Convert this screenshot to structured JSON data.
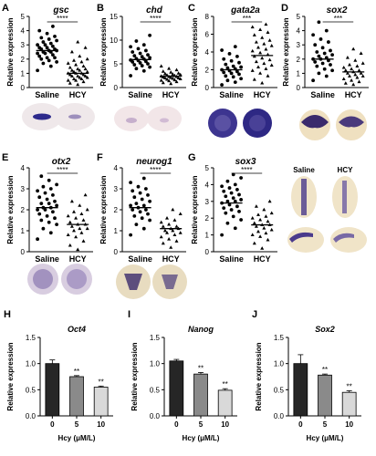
{
  "chart_data": [
    {
      "panel": "A",
      "type": "scatter",
      "title": "gsc",
      "ylabel": "Relative expression",
      "categories": [
        "Saline",
        "HCY"
      ],
      "ylim": [
        0,
        5
      ],
      "yticks": [
        0,
        1,
        2,
        3,
        4,
        5
      ],
      "significance": "****",
      "series": [
        {
          "name": "Saline",
          "mean": 2.6,
          "values": [
            1.2,
            1.5,
            1.7,
            1.8,
            1.9,
            2.0,
            2.1,
            2.1,
            2.2,
            2.3,
            2.4,
            2.4,
            2.5,
            2.5,
            2.6,
            2.6,
            2.7,
            2.7,
            2.8,
            2.8,
            2.9,
            3.0,
            3.0,
            3.1,
            3.2,
            3.3,
            3.4,
            3.5,
            3.6,
            3.8,
            4.0,
            4.3
          ]
        },
        {
          "name": "HCY",
          "mean": 1.0,
          "values": [
            0.2,
            0.3,
            0.4,
            0.5,
            0.5,
            0.6,
            0.6,
            0.7,
            0.7,
            0.8,
            0.8,
            0.8,
            0.9,
            0.9,
            1.0,
            1.0,
            1.0,
            1.1,
            1.1,
            1.2,
            1.2,
            1.3,
            1.3,
            1.4,
            1.5,
            1.6,
            1.7,
            1.8,
            1.9,
            2.0,
            2.2,
            2.5,
            2.8,
            3.2
          ]
        }
      ]
    },
    {
      "panel": "B",
      "type": "scatter",
      "title": "chd",
      "ylabel": "Relative expression",
      "categories": [
        "Saline",
        "HCY"
      ],
      "ylim": [
        0,
        15
      ],
      "yticks": [
        0,
        5,
        10,
        15
      ],
      "significance": "****",
      "series": [
        {
          "name": "Saline",
          "mean": 5.9,
          "values": [
            2.5,
            3.5,
            4.0,
            4.3,
            4.6,
            4.8,
            5.0,
            5.2,
            5.4,
            5.5,
            5.7,
            5.8,
            6.0,
            6.1,
            6.3,
            6.5,
            6.7,
            6.9,
            7.2,
            7.5,
            7.8,
            8.2,
            8.6,
            9.0,
            9.8,
            11.0
          ]
        },
        {
          "name": "HCY",
          "mean": 2.4,
          "values": [
            0.8,
            1.0,
            1.2,
            1.4,
            1.5,
            1.6,
            1.7,
            1.8,
            1.9,
            2.0,
            2.0,
            2.1,
            2.2,
            2.3,
            2.3,
            2.4,
            2.5,
            2.6,
            2.7,
            2.8,
            2.9,
            3.0,
            3.2,
            3.4,
            3.7,
            4.0,
            4.5
          ]
        }
      ]
    },
    {
      "panel": "C",
      "type": "scatter",
      "title": "gata2a",
      "ylabel": "Relative expression",
      "categories": [
        "Saline",
        "HCY"
      ],
      "ylim": [
        0,
        8
      ],
      "yticks": [
        0,
        2,
        4,
        6,
        8
      ],
      "significance": "***",
      "series": [
        {
          "name": "Saline",
          "mean": 2.0,
          "values": [
            0.3,
            0.6,
            0.8,
            1.0,
            1.2,
            1.3,
            1.5,
            1.6,
            1.7,
            1.8,
            1.9,
            2.0,
            2.1,
            2.2,
            2.3,
            2.4,
            2.6,
            2.8,
            3.0,
            3.2,
            3.5,
            3.8,
            4.2,
            4.6
          ]
        },
        {
          "name": "HCY",
          "mean": 3.6,
          "values": [
            0.5,
            0.9,
            1.3,
            1.6,
            1.9,
            2.1,
            2.3,
            2.5,
            2.7,
            2.9,
            3.1,
            3.3,
            3.5,
            3.7,
            3.9,
            4.1,
            4.3,
            4.5,
            4.7,
            4.9,
            5.1,
            5.3,
            5.6,
            5.9,
            6.2,
            6.5,
            6.8,
            7.1
          ]
        }
      ]
    },
    {
      "panel": "D",
      "type": "scatter",
      "title": "sox2",
      "ylabel": "Relative expression",
      "categories": [
        "Saline",
        "HCY"
      ],
      "ylim": [
        0,
        5
      ],
      "yticks": [
        0,
        1,
        2,
        3,
        4,
        5
      ],
      "significance": "***",
      "series": [
        {
          "name": "Saline",
          "mean": 2.0,
          "values": [
            0.5,
            0.8,
            1.0,
            1.2,
            1.3,
            1.5,
            1.6,
            1.7,
            1.8,
            1.9,
            2.0,
            2.0,
            2.1,
            2.2,
            2.3,
            2.4,
            2.5,
            2.6,
            2.8,
            3.0,
            3.2,
            3.4,
            3.7,
            4.0,
            4.6
          ]
        },
        {
          "name": "HCY",
          "mean": 1.1,
          "values": [
            0.2,
            0.3,
            0.4,
            0.5,
            0.6,
            0.7,
            0.8,
            0.8,
            0.9,
            1.0,
            1.0,
            1.1,
            1.2,
            1.2,
            1.3,
            1.4,
            1.5,
            1.6,
            1.7,
            1.9,
            2.1,
            2.4,
            2.7
          ]
        }
      ]
    },
    {
      "panel": "E",
      "type": "scatter",
      "title": "otx2",
      "ylabel": "Relative expression",
      "categories": [
        "Saline",
        "HCY"
      ],
      "ylim": [
        0,
        4
      ],
      "yticks": [
        0,
        1,
        2,
        3,
        4
      ],
      "significance": "****",
      "series": [
        {
          "name": "Saline",
          "mean": 2.1,
          "values": [
            0.6,
            0.9,
            1.1,
            1.3,
            1.4,
            1.5,
            1.6,
            1.7,
            1.8,
            1.9,
            2.0,
            2.0,
            2.1,
            2.1,
            2.2,
            2.3,
            2.3,
            2.4,
            2.5,
            2.6,
            2.7,
            2.8,
            2.9,
            3.0,
            3.1,
            3.2,
            3.4,
            3.6
          ]
        },
        {
          "name": "HCY",
          "mean": 1.3,
          "values": [
            0.1,
            0.3,
            0.5,
            0.7,
            0.8,
            0.9,
            1.0,
            1.1,
            1.1,
            1.2,
            1.3,
            1.3,
            1.4,
            1.5,
            1.6,
            1.7,
            1.8,
            1.9,
            2.0,
            2.2,
            2.4,
            2.7
          ]
        }
      ]
    },
    {
      "panel": "F",
      "type": "scatter",
      "title": "neurog1",
      "ylabel": "Relative expression",
      "categories": [
        "Saline",
        "HCY"
      ],
      "ylim": [
        0,
        4
      ],
      "yticks": [
        0,
        1,
        2,
        3,
        4
      ],
      "significance": "****",
      "series": [
        {
          "name": "Saline",
          "mean": 2.1,
          "values": [
            0.8,
            1.1,
            1.3,
            1.5,
            1.6,
            1.7,
            1.8,
            1.9,
            2.0,
            2.0,
            2.1,
            2.2,
            2.2,
            2.3,
            2.4,
            2.5,
            2.6,
            2.7,
            2.8,
            2.9,
            3.0,
            3.1,
            3.3,
            3.5
          ]
        },
        {
          "name": "HCY",
          "mean": 1.1,
          "values": [
            0.2,
            0.4,
            0.5,
            0.6,
            0.7,
            0.8,
            0.9,
            0.9,
            1.0,
            1.0,
            1.1,
            1.1,
            1.2,
            1.2,
            1.3,
            1.4,
            1.5,
            1.6,
            1.8,
            2.0
          ]
        }
      ]
    },
    {
      "panel": "G",
      "type": "scatter",
      "title": "sox3",
      "ylabel": "Relative expression",
      "categories": [
        "Saline",
        "HCY"
      ],
      "ylim": [
        0,
        5
      ],
      "yticks": [
        0,
        1,
        2,
        3,
        4,
        5
      ],
      "significance": "****",
      "series": [
        {
          "name": "Saline",
          "mean": 2.9,
          "values": [
            1.0,
            1.4,
            1.7,
            1.9,
            2.1,
            2.3,
            2.4,
            2.5,
            2.6,
            2.7,
            2.8,
            2.9,
            3.0,
            3.0,
            3.1,
            3.2,
            3.3,
            3.4,
            3.5,
            3.6,
            3.7,
            3.8,
            3.9,
            4.0,
            4.2,
            4.4,
            4.6
          ]
        },
        {
          "name": "HCY",
          "mean": 1.6,
          "values": [
            0.2,
            0.5,
            0.7,
            0.9,
            1.0,
            1.1,
            1.2,
            1.3,
            1.4,
            1.5,
            1.6,
            1.6,
            1.7,
            1.8,
            1.9,
            2.0,
            2.1,
            2.2,
            2.3,
            2.5,
            2.7,
            3.0
          ]
        }
      ]
    },
    {
      "panel": "H",
      "type": "bar",
      "title": "Oct4",
      "ylabel": "Relative expression",
      "xlabel": "Hcy (μM/L)",
      "categories": [
        "0",
        "5",
        "10"
      ],
      "values": [
        1.0,
        0.75,
        0.55
      ],
      "errors": [
        0.07,
        0.02,
        0.02
      ],
      "annotations": [
        "",
        "**",
        "**"
      ],
      "ylim": [
        0,
        1.5
      ],
      "yticks": [
        "0.0",
        "0.5",
        "1.0",
        "1.5"
      ],
      "colors": [
        "#262626",
        "#8a8a8a",
        "#d9d9d9"
      ]
    },
    {
      "panel": "I",
      "type": "bar",
      "title": "Nanog",
      "ylabel": "Relative expression",
      "xlabel": "Hcy (μM/L)",
      "categories": [
        "0",
        "5",
        "10"
      ],
      "values": [
        1.05,
        0.8,
        0.49
      ],
      "errors": [
        0.03,
        0.03,
        0.03
      ],
      "annotations": [
        "",
        "**",
        "**"
      ],
      "ylim": [
        0,
        1.5
      ],
      "yticks": [
        "0.0",
        "0.5",
        "1.0",
        "1.5"
      ],
      "colors": [
        "#262626",
        "#8a8a8a",
        "#d9d9d9"
      ]
    },
    {
      "panel": "J",
      "type": "bar",
      "title": "Sox2",
      "ylabel": "Relative expression",
      "xlabel": "Hcy (μM/L)",
      "categories": [
        "0",
        "5",
        "10"
      ],
      "values": [
        1.0,
        0.78,
        0.45
      ],
      "errors": [
        0.17,
        0.02,
        0.03
      ],
      "annotations": [
        "",
        "**",
        "**"
      ],
      "ylim": [
        0,
        1.5
      ],
      "yticks": [
        "0.0",
        "0.5",
        "1.0",
        "1.5"
      ],
      "colors": [
        "#262626",
        "#8a8a8a",
        "#d9d9d9"
      ]
    }
  ],
  "images": {
    "panel_g_labels": [
      "Saline",
      "HCY"
    ],
    "stain_color": "#4a3a8c"
  }
}
